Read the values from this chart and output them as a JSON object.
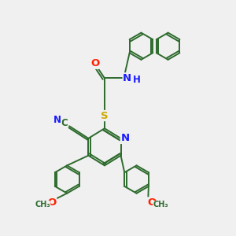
{
  "bg_color": "#f0f0f0",
  "bond_color": "#2d6b2d",
  "bond_width": 1.4,
  "atom_colors": {
    "C": "#2d6b2d",
    "N": "#1a1aff",
    "O": "#ff2200",
    "S": "#ccaa00",
    "H": "#1a1aff"
  },
  "font_size": 8.5,
  "naph_r": 0.58,
  "phen_r": 0.6,
  "pyr_r": 0.72
}
